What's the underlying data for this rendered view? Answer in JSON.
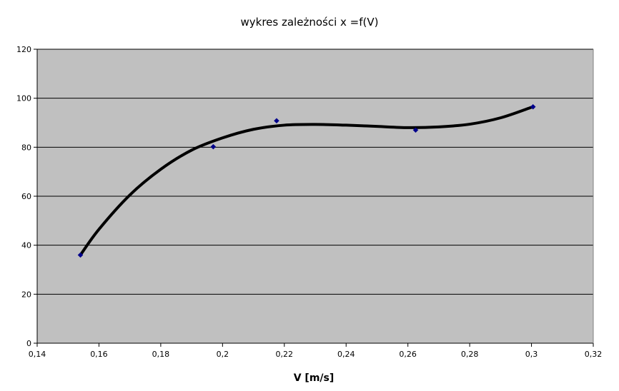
{
  "chart_data": {
    "type": "scatter",
    "title": "wykres zależności  x =f(V)",
    "xlabel": "V [m/s]",
    "ylabel": "",
    "xlim": [
      0.14,
      0.32
    ],
    "ylim": [
      0,
      120
    ],
    "xticks": [
      0.14,
      0.16,
      0.18,
      0.2,
      0.22,
      0.24,
      0.26,
      0.28,
      0.3,
      0.32
    ],
    "xtick_labels": [
      "0,14",
      "0,16",
      "0,18",
      "0,2",
      "0,22",
      "0,24",
      "0,26",
      "0,28",
      "0,3",
      "0,32"
    ],
    "yticks": [
      0,
      20,
      40,
      60,
      80,
      100,
      120
    ],
    "ytick_labels": [
      "0",
      "20",
      "40",
      "60",
      "80",
      "100",
      "120"
    ],
    "grid": true,
    "legend": "none",
    "series": [
      {
        "kind": "points",
        "x": [
          0.154,
          0.197,
          0.2175,
          0.2625,
          0.3005
        ],
        "y": [
          36,
          80.2,
          90.8,
          87,
          96.5
        ],
        "color": "#00008b"
      },
      {
        "kind": "trendline",
        "x": [
          0.154,
          0.16,
          0.17,
          0.18,
          0.19,
          0.2,
          0.21,
          0.22,
          0.23,
          0.24,
          0.25,
          0.26,
          0.27,
          0.28,
          0.29,
          0.3
        ],
        "y": [
          36,
          46.5,
          60.5,
          71,
          78.8,
          83.8,
          87.3,
          89,
          89.3,
          89,
          88.5,
          88,
          88.3,
          89.4,
          92,
          96.3
        ],
        "color": "#000000"
      }
    ],
    "plot_background": "#c0c0c0",
    "grid_color": "#000000"
  }
}
